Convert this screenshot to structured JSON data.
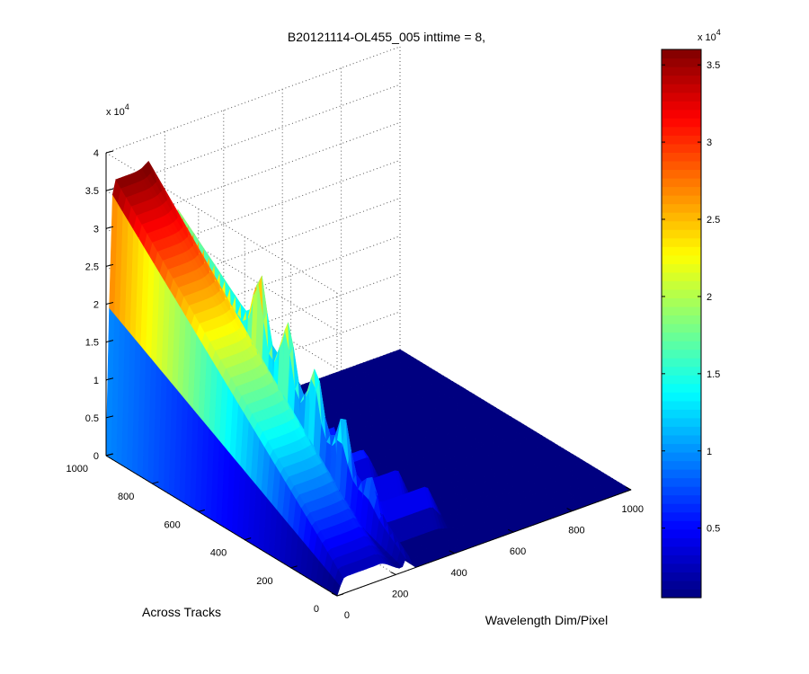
{
  "chart_data": {
    "type": "surface",
    "title": "B20121114-OL455_005 inttime = 8,",
    "xlabel": "Wavelength Dim/Pixel",
    "ylabel": "Across Tracks",
    "z_exponent_label": "x 10",
    "z_exponent": "4",
    "x_ticks": [
      "0",
      "200",
      "400",
      "600",
      "800",
      "1000"
    ],
    "y_ticks": [
      "0",
      "200",
      "400",
      "600",
      "800",
      "1000"
    ],
    "z_ticks": [
      "0",
      "0.5",
      "1",
      "1.5",
      "2",
      "2.5",
      "3",
      "3.5",
      "4"
    ],
    "xlim": [
      0,
      1000
    ],
    "ylim": [
      0,
      1000
    ],
    "zlim": [
      0,
      40000
    ],
    "grid": true,
    "colormap": "jet",
    "colorbar": {
      "position": "right",
      "range": [
        500,
        36000
      ],
      "ticks": [
        "0.5",
        "1",
        "1.5",
        "2",
        "2.5",
        "3",
        "3.5"
      ],
      "tick_values": [
        5000,
        10000,
        15000,
        20000,
        25000,
        30000,
        35000
      ],
      "exponent_label": "x 10",
      "exponent": "4"
    },
    "peaks": [
      {
        "description": "broad plateau",
        "x_range": [
          0,
          140
        ],
        "y_range": [
          0,
          1000
        ],
        "z_max": 36000
      },
      {
        "description": "narrow peak",
        "x_approx": 240,
        "y_range": [
          0,
          1000
        ],
        "z_max": 31000
      }
    ],
    "stripes": [
      {
        "x_range": [
          180,
          450
        ],
        "y_center": 640,
        "z": 8000
      },
      {
        "x_range": [
          200,
          460
        ],
        "y_center": 520,
        "z": 7000
      },
      {
        "x_range": [
          210,
          470
        ],
        "y_center": 400,
        "z": 6500
      },
      {
        "x_range": [
          220,
          480
        ],
        "y_center": 280,
        "z": 6000
      },
      {
        "x_range": [
          230,
          490
        ],
        "y_center": 160,
        "z": 5500
      }
    ]
  }
}
